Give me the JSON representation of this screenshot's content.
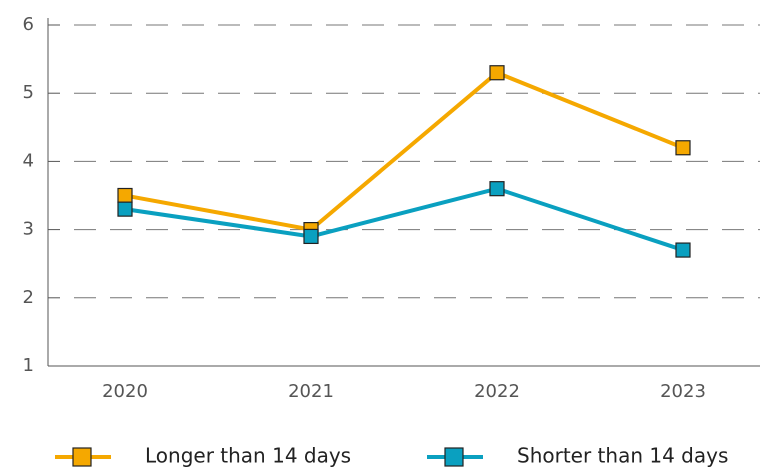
{
  "chart_data": {
    "type": "line",
    "categories": [
      "2020",
      "2021",
      "2022",
      "2023"
    ],
    "series": [
      {
        "name": "Longer than 14 days",
        "color": "#f5a800",
        "values": [
          3.5,
          3.0,
          5.3,
          4.2
        ]
      },
      {
        "name": "Shorter than 14 days",
        "color": "#0aa0c0",
        "values": [
          3.3,
          2.9,
          3.6,
          2.7
        ]
      }
    ],
    "ylim": [
      1,
      6
    ],
    "yticks": [
      1,
      2,
      3,
      4,
      5,
      6
    ],
    "grid": true
  }
}
